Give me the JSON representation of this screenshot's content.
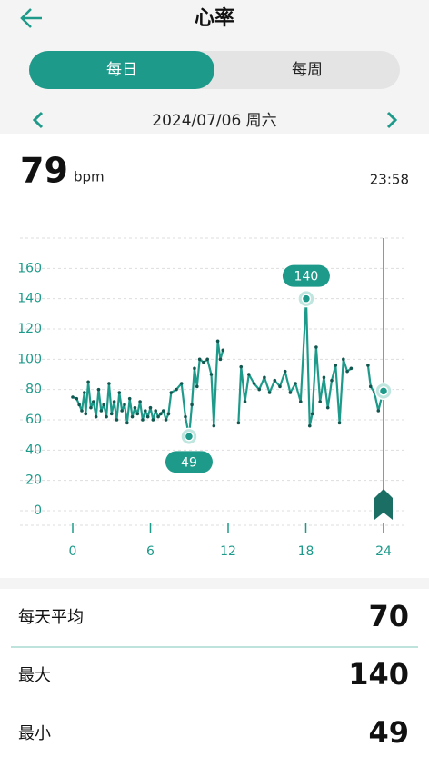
{
  "header": {
    "title": "心率"
  },
  "tabs": [
    "每日",
    "每周"
  ],
  "date": "2024/07/06 周六",
  "current": {
    "value": 79,
    "unit": "bpm",
    "time": "23:58"
  },
  "chart_data": {
    "type": "line",
    "color": "#1e9a8a",
    "x": [
      0,
      0.3,
      0.5,
      0.7,
      0.9,
      1.0,
      1.2,
      1.4,
      1.6,
      1.8,
      2.0,
      2.2,
      2.4,
      2.6,
      2.8,
      3.0,
      3.2,
      3.4,
      3.6,
      3.8,
      4.0,
      4.2,
      4.4,
      4.6,
      4.8,
      5.0,
      5.2,
      5.4,
      5.6,
      5.8,
      6.0,
      6.2,
      6.4,
      6.6,
      6.8,
      7.0,
      7.2,
      7.4,
      7.6,
      8.0,
      8.4,
      8.7,
      8.98,
      9.2,
      9.4,
      9.6,
      9.8,
      10.1,
      10.4,
      10.7,
      10.9,
      11.2,
      11.4,
      11.6,
      12.2,
      12.8,
      13.0,
      13.3,
      13.6,
      14.0,
      14.4,
      14.8,
      15.2,
      15.6,
      16.0,
      16.4,
      16.8,
      17.2,
      17.6,
      18.03,
      18.3,
      18.5,
      18.8,
      19.1,
      19.4,
      19.7,
      20.0,
      20.3,
      20.6,
      20.9,
      21.2,
      21.5,
      22.1,
      22.8,
      23.0,
      23.3,
      23.6,
      23.97
    ],
    "values": [
      75,
      74,
      70,
      66,
      78,
      64,
      85,
      68,
      72,
      62,
      80,
      66,
      70,
      62,
      84,
      64,
      72,
      60,
      78,
      66,
      70,
      58,
      74,
      62,
      68,
      64,
      72,
      60,
      66,
      62,
      68,
      60,
      66,
      62,
      64,
      66,
      60,
      64,
      78,
      80,
      84,
      62,
      49,
      70,
      94,
      82,
      100,
      98,
      100,
      90,
      56,
      112,
      100,
      106,
      null,
      58,
      95,
      72,
      90,
      84,
      80,
      88,
      78,
      86,
      82,
      92,
      78,
      84,
      72,
      140,
      56,
      64,
      108,
      72,
      88,
      68,
      86,
      96,
      58,
      100,
      92,
      94,
      null,
      96,
      82,
      78,
      66,
      79
    ],
    "xlim": [
      0,
      24
    ],
    "xticks": [
      0,
      6,
      12,
      18,
      24
    ],
    "ylim": [
      0,
      180
    ],
    "yticks": [
      0,
      20,
      40,
      60,
      80,
      100,
      120,
      140,
      160
    ],
    "grid": true,
    "markers": [
      {
        "x": 18.03,
        "y": 140
      },
      {
        "x": 8.98,
        "y": 49
      }
    ],
    "cursor_x": 24
  },
  "stats": [
    {
      "label": "每天平均",
      "value": 70
    },
    {
      "label": "最大",
      "value": 140
    },
    {
      "label": "最小",
      "value": 49
    }
  ]
}
